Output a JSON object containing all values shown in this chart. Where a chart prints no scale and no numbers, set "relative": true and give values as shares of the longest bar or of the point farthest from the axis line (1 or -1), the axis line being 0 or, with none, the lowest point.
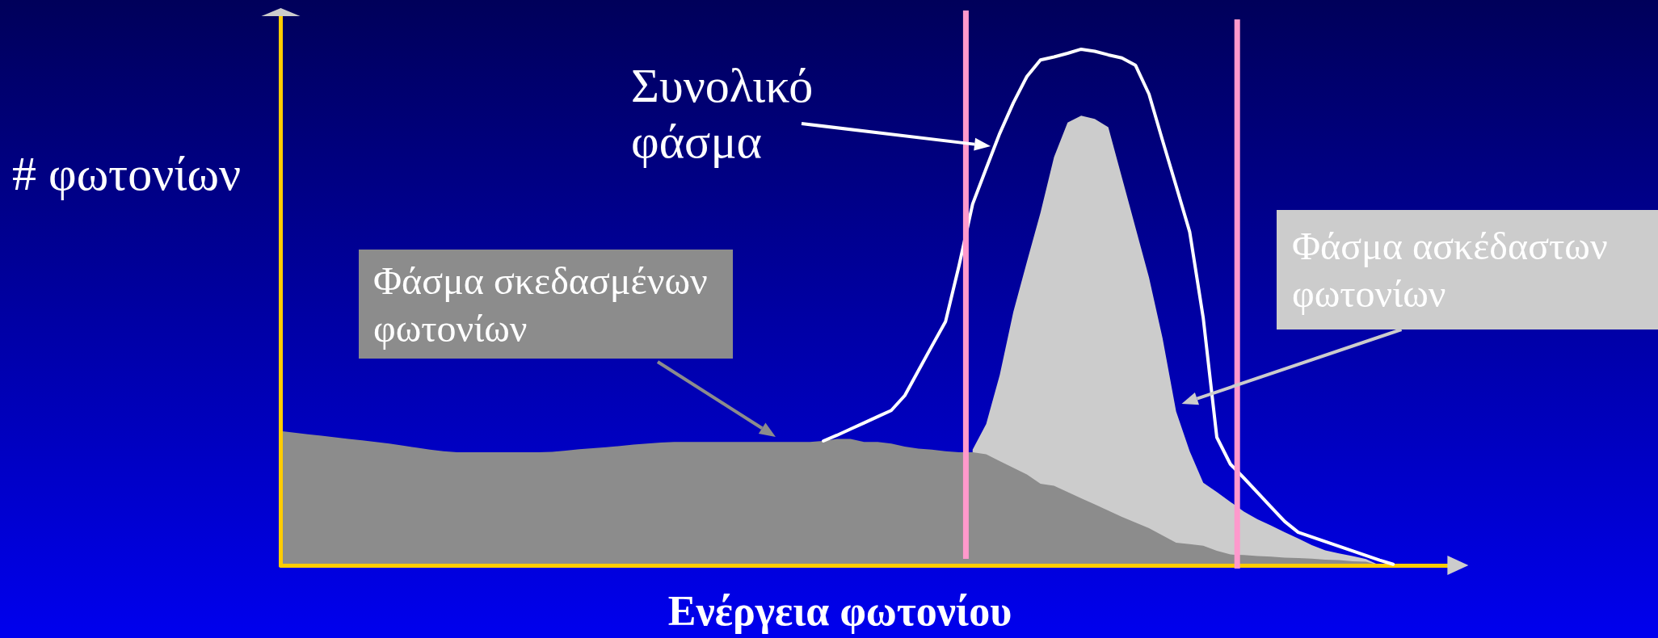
{
  "chart_data": {
    "type": "area",
    "relative": true,
    "xlabel": "Ενέργεια φωτονίου",
    "ylabel": "# φωτονίων",
    "marker": "none",
    "categories": [
      null,
      null,
      null,
      null,
      null,
      null,
      null,
      null,
      null,
      null,
      null,
      null,
      null,
      null,
      null,
      null,
      null,
      null,
      null,
      null,
      null,
      null,
      null,
      null,
      null,
      null,
      null,
      null,
      null,
      null,
      null,
      null,
      null,
      null,
      null,
      null,
      null,
      null,
      null,
      null,
      null,
      null,
      null,
      null,
      null,
      null,
      null,
      null,
      null,
      null,
      null,
      null,
      null,
      null,
      null,
      null,
      null,
      null,
      null,
      null,
      null,
      null,
      null,
      null,
      null,
      null,
      null,
      null,
      null,
      null,
      null,
      null,
      null,
      null,
      null,
      null,
      null,
      null,
      null,
      null,
      null,
      null,
      null,
      null,
      null,
      null,
      null
    ],
    "series": [
      {
        "name": "Φάσμα ασκέδαστων φωτονίων",
        "color": "#cccccc",
        "values": [
          null,
          null,
          null,
          null,
          null,
          null,
          null,
          null,
          null,
          null,
          null,
          null,
          null,
          null,
          null,
          null,
          null,
          null,
          null,
          null,
          null,
          null,
          null,
          null,
          null,
          null,
          null,
          null,
          null,
          null,
          null,
          null,
          null,
          null,
          null,
          null,
          null,
          null,
          null,
          null,
          null,
          null,
          null,
          null,
          null,
          null,
          null,
          null,
          null,
          null,
          null,
          0.224,
          0.274,
          0.369,
          0.491,
          0.588,
          0.683,
          0.791,
          0.858,
          0.871,
          0.865,
          0.849,
          0.752,
          0.655,
          0.558,
          0.44,
          0.298,
          0.221,
          0.16,
          0.142,
          0.123,
          0.104,
          0.089,
          0.077,
          0.064,
          0.052,
          0.039,
          0.029,
          0.023,
          0.018,
          0.012,
          0,
          null,
          null,
          null,
          null,
          null
        ]
      },
      {
        "name": "Φάσμα σκεδασμένων φωτονίων",
        "color": "#8c8c8c",
        "values": [
          0.26,
          0.257,
          0.254,
          0.251,
          0.248,
          0.245,
          0.242,
          0.239,
          0.236,
          0.232,
          0.228,
          0.224,
          0.221,
          0.219,
          0.219,
          0.219,
          0.219,
          0.219,
          0.219,
          0.219,
          0.22,
          0.222,
          0.225,
          0.227,
          0.229,
          0.231,
          0.234,
          0.236,
          0.238,
          0.239,
          0.239,
          0.239,
          0.239,
          0.239,
          0.239,
          0.239,
          0.239,
          0.239,
          0.239,
          0.239,
          0.241,
          0.245,
          0.245,
          0.239,
          0.239,
          0.236,
          0.23,
          0.226,
          0.224,
          0.221,
          0.219,
          0.219,
          0.215,
          0.202,
          0.189,
          0.176,
          0.158,
          0.154,
          0.142,
          0.13,
          0.118,
          0.106,
          0.094,
          0.083,
          0.072,
          0.058,
          0.044,
          0.041,
          0.038,
          0.028,
          0.021,
          0.02,
          0.018,
          0.017,
          0.015,
          0.014,
          0.013,
          0.011,
          0.01,
          0.008,
          0.007,
          0,
          null,
          null,
          null,
          null,
          null
        ]
      },
      {
        "name": "Συνολικό φάσμα",
        "type": "line",
        "color": "#ffffff",
        "values": [
          null,
          null,
          null,
          null,
          null,
          null,
          null,
          null,
          null,
          null,
          null,
          null,
          null,
          null,
          null,
          null,
          null,
          null,
          null,
          null,
          null,
          null,
          null,
          null,
          null,
          null,
          null,
          null,
          null,
          null,
          null,
          null,
          null,
          null,
          null,
          null,
          null,
          null,
          null,
          null,
          0.241,
          0.252,
          0.264,
          0.276,
          0.288,
          0.3,
          0.329,
          0.377,
          0.425,
          0.472,
          0.581,
          0.7,
          0.769,
          0.837,
          0.896,
          0.947,
          0.979,
          0.985,
          0.992,
          1,
          0.996,
          0.989,
          0.983,
          0.969,
          0.913,
          0.823,
          0.735,
          0.646,
          0.479,
          0.248,
          0.196,
          0.169,
          0.141,
          0.113,
          0.085,
          0.064,
          0.055,
          0.046,
          0.037,
          0.028,
          0.019,
          0.01,
          0.002,
          null,
          null,
          null,
          null
        ]
      }
    ]
  }
}
